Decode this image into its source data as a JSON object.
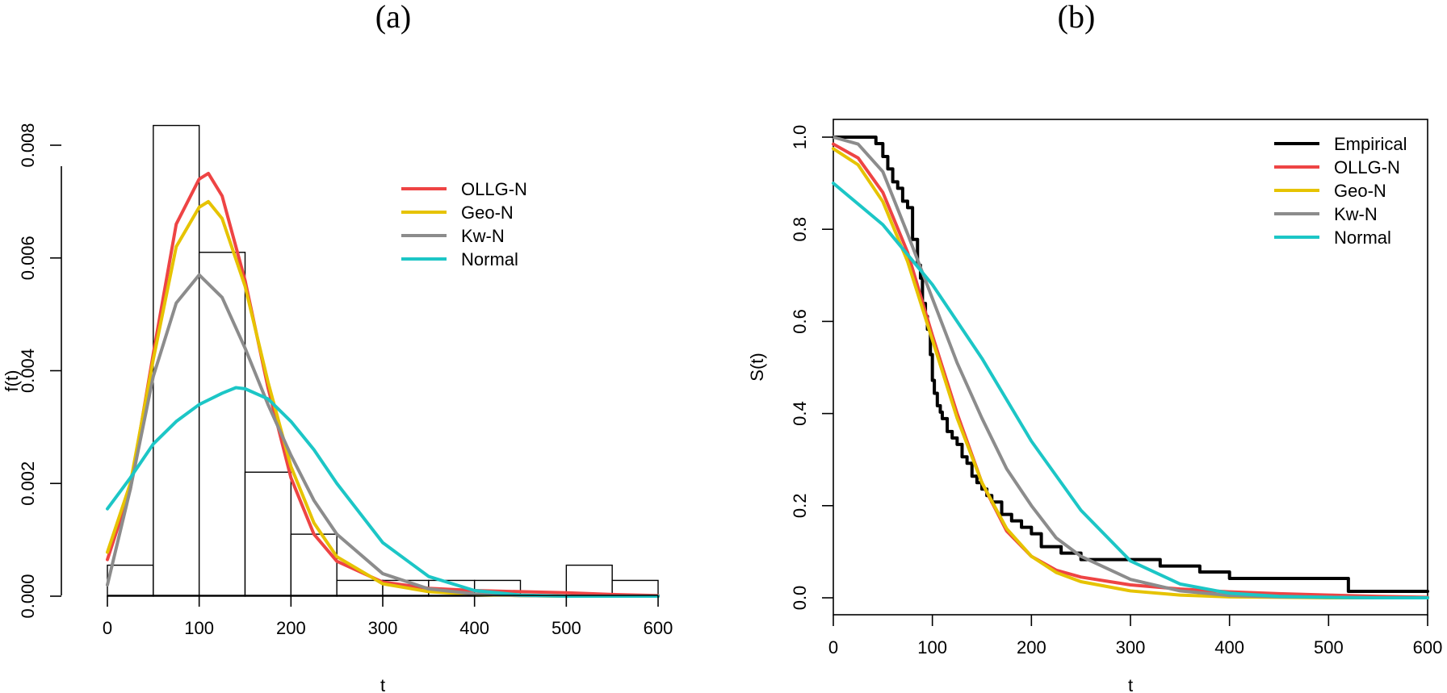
{
  "chart_data": [
    {
      "type": "line",
      "panel_title": "(a)",
      "xlabel": "t",
      "ylabel": "f(t)",
      "xlim": [
        0,
        600
      ],
      "ylim": [
        0,
        0.0083
      ],
      "x_ticks": [
        0,
        100,
        200,
        300,
        400,
        500,
        600
      ],
      "y_ticks": [
        0.0,
        0.002,
        0.004,
        0.006,
        0.008
      ],
      "y_tick_labels": [
        "0.000",
        "0.002",
        "0.004",
        "0.006",
        "0.008"
      ],
      "legend_placement": "top-right",
      "histogram": {
        "bin_edges": [
          0,
          50,
          100,
          150,
          200,
          250,
          300,
          350,
          400,
          450,
          500,
          550,
          600
        ],
        "densities": [
          0.00055,
          0.00835,
          0.0061,
          0.0022,
          0.0011,
          0.00028,
          0.00028,
          0.00028,
          0.00028,
          0,
          0.00055,
          0.00028
        ]
      },
      "series": [
        {
          "name": "OLLG-N",
          "color": "#ee4444",
          "x": [
            0,
            25,
            50,
            75,
            100,
            110,
            125,
            150,
            175,
            200,
            225,
            250,
            300,
            350,
            400,
            450,
            500,
            550,
            600
          ],
          "y": [
            0.00065,
            0.0019,
            0.0043,
            0.0066,
            0.0074,
            0.0075,
            0.0071,
            0.0056,
            0.0037,
            0.0021,
            0.0011,
            0.00062,
            0.00025,
            0.00014,
            0.0001,
            8e-05,
            6e-05,
            3e-05,
            1e-05
          ]
        },
        {
          "name": "Geo-N",
          "color": "#e6c300",
          "x": [
            0,
            25,
            50,
            75,
            100,
            110,
            125,
            150,
            175,
            200,
            225,
            250,
            300,
            350,
            400,
            450,
            500,
            550,
            600
          ],
          "y": [
            0.00078,
            0.002,
            0.0042,
            0.0062,
            0.0069,
            0.007,
            0.0067,
            0.0055,
            0.0038,
            0.0023,
            0.0013,
            0.0007,
            0.00022,
            8e-05,
            3e-05,
            1e-05,
            0,
            0,
            0
          ]
        },
        {
          "name": "Kw-N",
          "color": "#8c8c8c",
          "x": [
            0,
            25,
            50,
            75,
            100,
            125,
            150,
            175,
            200,
            225,
            250,
            300,
            350,
            400,
            450,
            500,
            550,
            600
          ],
          "y": [
            0.0002,
            0.0019,
            0.0039,
            0.0052,
            0.0057,
            0.0053,
            0.0044,
            0.0034,
            0.0025,
            0.0017,
            0.0011,
            0.0004,
            0.00013,
            4e-05,
            1e-05,
            0,
            0,
            0
          ]
        },
        {
          "name": "Normal",
          "color": "#1cc6c6",
          "x": [
            0,
            25,
            50,
            75,
            100,
            125,
            140,
            150,
            175,
            200,
            225,
            250,
            300,
            350,
            400,
            450,
            500,
            550,
            600
          ],
          "y": [
            0.00155,
            0.0021,
            0.0027,
            0.0031,
            0.0034,
            0.0036,
            0.0037,
            0.00368,
            0.0035,
            0.0031,
            0.0026,
            0.002,
            0.00095,
            0.00035,
            0.0001,
            2e-05,
            0,
            0,
            0
          ]
        }
      ]
    },
    {
      "type": "line",
      "panel_title": "(b)",
      "xlabel": "t",
      "ylabel": "S(t)",
      "xlim": [
        0,
        600
      ],
      "ylim": [
        0,
        1
      ],
      "x_ticks": [
        0,
        100,
        200,
        300,
        400,
        500,
        600
      ],
      "y_ticks": [
        0.0,
        0.2,
        0.4,
        0.6,
        0.8,
        1.0
      ],
      "y_tick_labels": [
        "0.0",
        "0.2",
        "0.4",
        "0.6",
        "0.8",
        "1.0"
      ],
      "legend_placement": "top-right",
      "series": [
        {
          "name": "Empirical",
          "color": "#000000",
          "step": true,
          "x": [
            0,
            43,
            50,
            55,
            60,
            65,
            70,
            75,
            80,
            85,
            88,
            90,
            93,
            95,
            98,
            100,
            102,
            105,
            108,
            110,
            115,
            120,
            125,
            130,
            135,
            140,
            145,
            150,
            155,
            160,
            170,
            180,
            190,
            200,
            210,
            230,
            250,
            280,
            300,
            330,
            370,
            400,
            450,
            520,
            600
          ],
          "y": [
            1.0,
            0.986,
            0.958,
            0.931,
            0.903,
            0.889,
            0.861,
            0.847,
            0.778,
            0.722,
            0.694,
            0.639,
            0.611,
            0.583,
            0.528,
            0.472,
            0.444,
            0.417,
            0.403,
            0.389,
            0.361,
            0.347,
            0.333,
            0.306,
            0.292,
            0.264,
            0.25,
            0.236,
            0.222,
            0.208,
            0.181,
            0.167,
            0.153,
            0.139,
            0.111,
            0.097,
            0.083,
            0.083,
            0.083,
            0.069,
            0.056,
            0.042,
            0.042,
            0.014,
            0.014
          ]
        },
        {
          "name": "OLLG-N",
          "color": "#ee4444",
          "x": [
            0,
            25,
            50,
            75,
            100,
            125,
            150,
            175,
            200,
            225,
            250,
            300,
            350,
            400,
            450,
            500,
            550,
            600
          ],
          "y": [
            0.985,
            0.955,
            0.88,
            0.75,
            0.57,
            0.4,
            0.25,
            0.145,
            0.09,
            0.06,
            0.045,
            0.028,
            0.019,
            0.013,
            0.009,
            0.006,
            0.003,
            0.001
          ]
        },
        {
          "name": "Geo-N",
          "color": "#e6c300",
          "x": [
            0,
            25,
            50,
            75,
            100,
            125,
            150,
            175,
            200,
            225,
            250,
            300,
            350,
            400,
            450,
            500,
            550,
            600
          ],
          "y": [
            0.975,
            0.94,
            0.86,
            0.73,
            0.56,
            0.39,
            0.25,
            0.15,
            0.09,
            0.055,
            0.035,
            0.015,
            0.006,
            0.002,
            0.001,
            0,
            0,
            0
          ]
        },
        {
          "name": "Kw-N",
          "color": "#8c8c8c",
          "x": [
            0,
            25,
            50,
            75,
            100,
            125,
            150,
            175,
            200,
            225,
            250,
            300,
            350,
            400,
            450,
            500,
            550,
            600
          ],
          "y": [
            1.0,
            0.985,
            0.925,
            0.79,
            0.65,
            0.51,
            0.39,
            0.28,
            0.2,
            0.13,
            0.09,
            0.04,
            0.015,
            0.005,
            0.002,
            0.001,
            0,
            0
          ]
        },
        {
          "name": "Normal",
          "color": "#1cc6c6",
          "x": [
            0,
            50,
            100,
            150,
            200,
            250,
            300,
            350,
            400,
            450,
            500,
            550,
            600
          ],
          "y": [
            0.9,
            0.81,
            0.68,
            0.52,
            0.34,
            0.19,
            0.08,
            0.03,
            0.01,
            0.003,
            0.001,
            0,
            0
          ]
        }
      ]
    }
  ]
}
